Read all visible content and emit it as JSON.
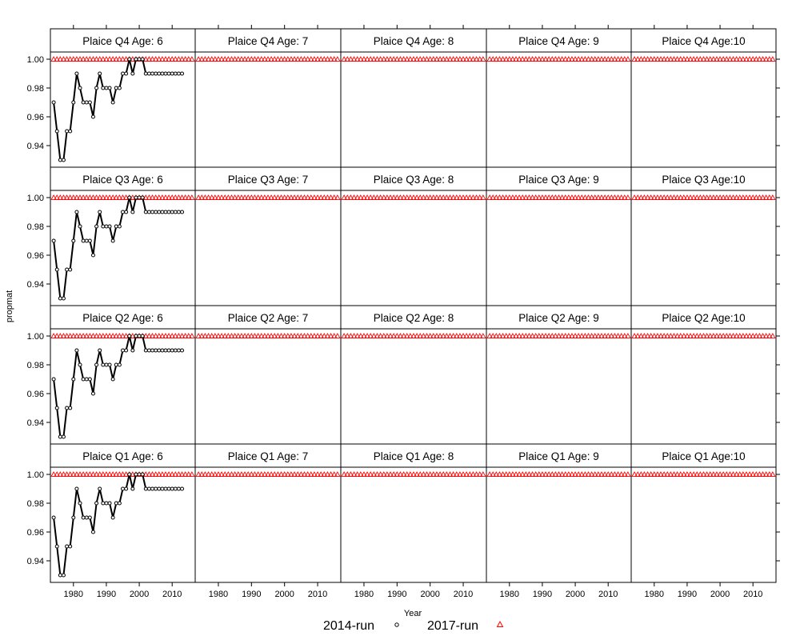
{
  "chart_data": {
    "type": "line",
    "layout": "trellis",
    "xlabel": "Year",
    "ylabel": "propmat",
    "xlim": [
      1973,
      2017
    ],
    "ylim": [
      0.925,
      1.005
    ],
    "x_ticks": [
      1980,
      1990,
      2000,
      2010
    ],
    "x_tick_labels": [
      "1980",
      "1990",
      "2000",
      "2010"
    ],
    "y_ticks": [
      0.94,
      0.96,
      0.98,
      1.0
    ],
    "y_tick_labels": [
      "0.94",
      "0.96",
      "0.98",
      "1.00"
    ],
    "legend": {
      "position": "bottom",
      "entries": [
        {
          "label": "2014-run",
          "symbol": "circle",
          "color": "#000000"
        },
        {
          "label": "2017-run",
          "symbol": "triangle",
          "color": "#ff0000"
        }
      ]
    },
    "panel_rows": [
      [
        "Plaice Q4 Age: 6",
        "Plaice Q4 Age: 7",
        "Plaice Q4 Age: 8",
        "Plaice Q4 Age: 9",
        "Plaice Q4 Age:10"
      ],
      [
        "Plaice Q3 Age: 6",
        "Plaice Q3 Age: 7",
        "Plaice Q3 Age: 8",
        "Plaice Q3 Age: 9",
        "Plaice Q3 Age:10"
      ],
      [
        "Plaice Q2 Age: 6",
        "Plaice Q2 Age: 7",
        "Plaice Q2 Age: 8",
        "Plaice Q2 Age: 9",
        "Plaice Q2 Age:10"
      ],
      [
        "Plaice Q1 Age: 6",
        "Plaice Q1 Age: 7",
        "Plaice Q1 Age: 8",
        "Plaice Q1 Age: 9",
        "Plaice Q1 Age:10"
      ]
    ],
    "series": [
      {
        "name": "2014-run",
        "panels": "Age 6 only",
        "x": [
          1974,
          1975,
          1976,
          1977,
          1978,
          1979,
          1980,
          1981,
          1982,
          1983,
          1984,
          1985,
          1986,
          1987,
          1988,
          1989,
          1990,
          1991,
          1992,
          1993,
          1994,
          1995,
          1996,
          1997,
          1998,
          1999,
          2000,
          2001,
          2002,
          2003,
          2004,
          2005,
          2006,
          2007,
          2008,
          2009,
          2010,
          2011,
          2012,
          2013
        ],
        "y": [
          0.97,
          0.95,
          0.93,
          0.93,
          0.95,
          0.95,
          0.97,
          0.99,
          0.98,
          0.97,
          0.97,
          0.97,
          0.96,
          0.98,
          0.99,
          0.98,
          0.98,
          0.98,
          0.97,
          0.98,
          0.98,
          0.99,
          0.99,
          1.0,
          0.99,
          1.0,
          1.0,
          1.0,
          0.99,
          0.99,
          0.99,
          0.99,
          0.99,
          0.99,
          0.99,
          0.99,
          0.99,
          0.99,
          0.99,
          0.99
        ]
      },
      {
        "name": "2017-run",
        "panels": "all",
        "x_range": [
          1974,
          2016
        ],
        "y": 1.0
      }
    ]
  }
}
